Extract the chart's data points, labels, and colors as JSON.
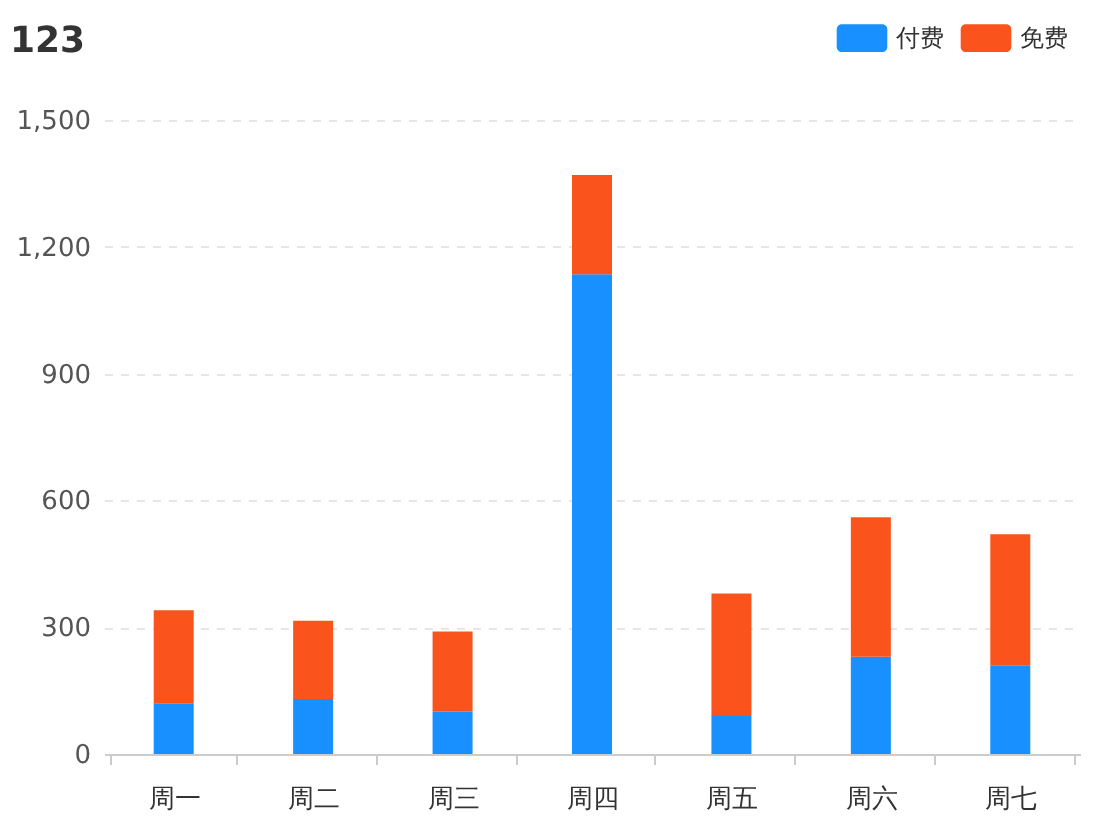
{
  "chart_data": {
    "type": "bar",
    "title": "123",
    "stacked": true,
    "categories": [
      "周一",
      "周二",
      "周三",
      "周四",
      "周五",
      "周六",
      "周七"
    ],
    "series": [
      {
        "name": "付费",
        "color": "#1890ff",
        "values": [
          120,
          130,
          100,
          1135,
          90,
          230,
          210
        ]
      },
      {
        "name": "免费",
        "color": "#fa541c",
        "values": [
          220,
          185,
          190,
          235,
          290,
          330,
          310
        ]
      }
    ],
    "ylim": [
      0,
      1500
    ],
    "yticks": [
      0,
      300,
      600,
      900,
      {
        "value": 1200,
        "label": "1,200"
      },
      {
        "value": 1500,
        "label": "1,500"
      }
    ],
    "grid": "y",
    "legend": "top right"
  }
}
